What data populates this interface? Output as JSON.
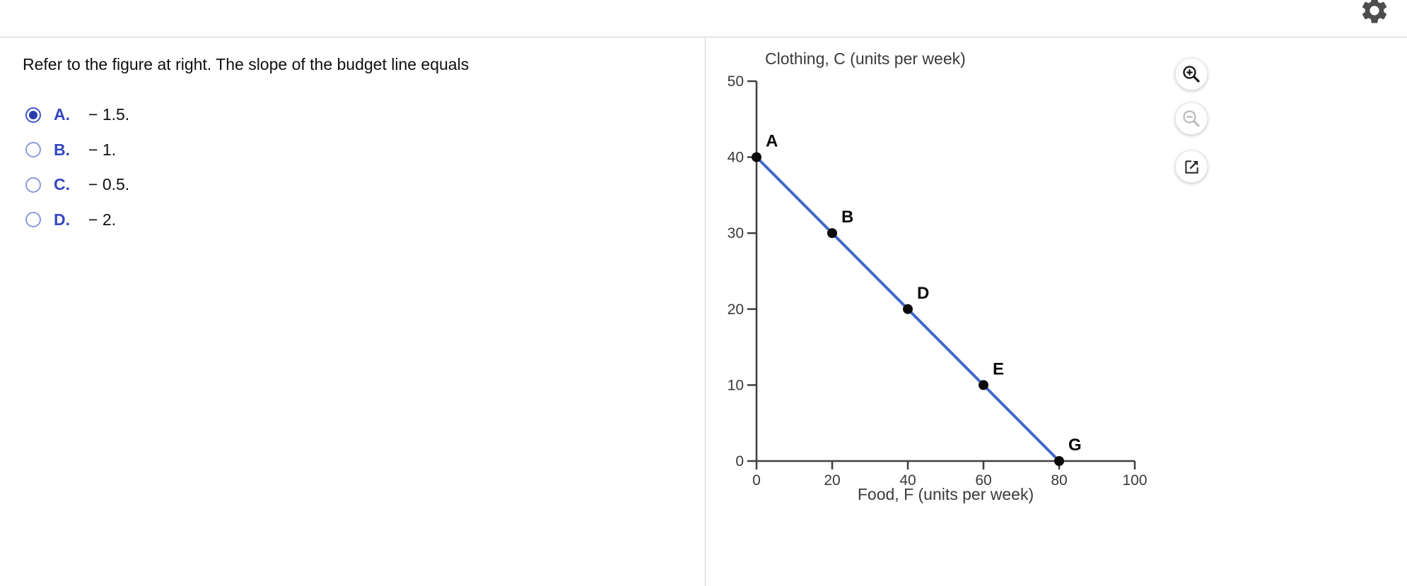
{
  "header": {
    "settings_icon": "gear"
  },
  "question": {
    "text": "Refer to the figure at right. The slope of the budget line equals",
    "options": [
      {
        "letter": "A.",
        "value": "− 1.5.",
        "selected": true
      },
      {
        "letter": "B.",
        "value": "− 1.",
        "selected": false
      },
      {
        "letter": "C.",
        "value": "− 0.5.",
        "selected": false
      },
      {
        "letter": "D.",
        "value": "− 2.",
        "selected": false
      }
    ]
  },
  "figure_toolbar": {
    "zoom_in_icon": "magnifier-plus",
    "zoom_out_icon": "magnifier-minus",
    "open_icon": "open-in-new-window",
    "zoom_out_disabled": true
  },
  "chart_data": {
    "type": "line",
    "title": "",
    "xlabel": "Food, F (units per week)",
    "ylabel": "Clothing, C (units per week)",
    "x": [
      0,
      20,
      40,
      60,
      80
    ],
    "y": [
      40,
      30,
      20,
      10,
      0
    ],
    "point_labels": [
      "A",
      "B",
      "D",
      "E",
      "G"
    ],
    "xticks": [
      0,
      20,
      40,
      60,
      80,
      100
    ],
    "yticks": [
      0,
      10,
      20,
      30,
      40,
      50
    ],
    "xlim": [
      0,
      100
    ],
    "ylim": [
      0,
      50
    ],
    "grid": false,
    "legend": false,
    "line_color": "#4169C8",
    "point_color": "#0a0a0a",
    "axis_color": "#3f3f3f"
  }
}
